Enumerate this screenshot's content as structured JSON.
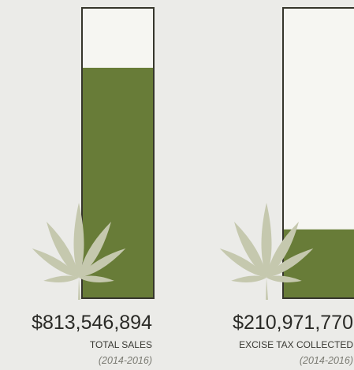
{
  "chart_data": [
    {
      "type": "bar",
      "categories": [
        "TOTAL SALES"
      ],
      "values": [
        813546894
      ],
      "value_labels": [
        "$813,546,894"
      ],
      "subtitle": "(2014-2016)",
      "color": "#687c38",
      "ylim": [
        0,
        1025000000
      ]
    },
    {
      "type": "bar",
      "categories": [
        "EXCISE TAX COLLECTED"
      ],
      "values": [
        210971770
      ],
      "value_labels": [
        "$210,971,770"
      ],
      "subtitle": "(2014-2016)",
      "color": "#687c38",
      "ylim": [
        0,
        890000000
      ]
    }
  ]
}
